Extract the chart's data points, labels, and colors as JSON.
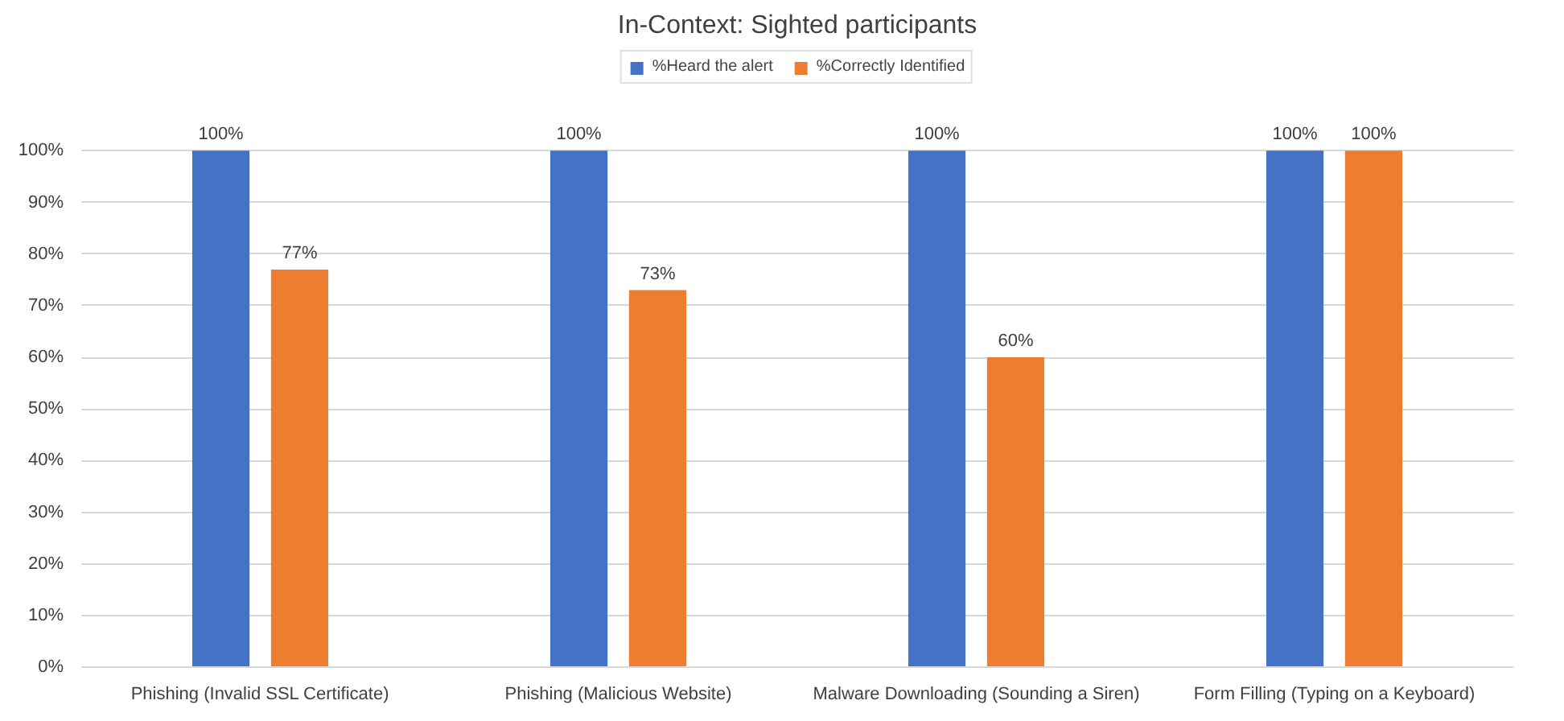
{
  "chart_data": {
    "type": "bar",
    "title": "In-Context: Sighted participants",
    "categories": [
      "Phishing (Invalid SSL Certificate)",
      "Phishing (Malicious Website)",
      "Malware Downloading (Sounding a Siren)",
      "Form Filling (Typing on a Keyboard)"
    ],
    "series": [
      {
        "name": "%Heard the alert",
        "color": "#4472c4",
        "values": [
          100,
          100,
          100,
          100
        ],
        "value_labels": [
          "100%",
          "100%",
          "100%",
          "100%"
        ]
      },
      {
        "name": "%Correctly Identified",
        "color": "#ed7d31",
        "values": [
          77,
          73,
          60,
          100
        ],
        "value_labels": [
          "77%",
          "73%",
          "60%",
          "100%"
        ]
      }
    ],
    "ylim": [
      0,
      100
    ],
    "yticks": [
      {
        "value": 0,
        "label": "0%"
      },
      {
        "value": 10,
        "label": "10%"
      },
      {
        "value": 20,
        "label": "20%"
      },
      {
        "value": 30,
        "label": "30%"
      },
      {
        "value": 40,
        "label": "40%"
      },
      {
        "value": 50,
        "label": "50%"
      },
      {
        "value": 60,
        "label": "60%"
      },
      {
        "value": 70,
        "label": "70%"
      },
      {
        "value": 80,
        "label": "80%"
      },
      {
        "value": 90,
        "label": "90%"
      },
      {
        "value": 100,
        "label": "100%"
      }
    ],
    "grid": "y",
    "legend": "top"
  }
}
